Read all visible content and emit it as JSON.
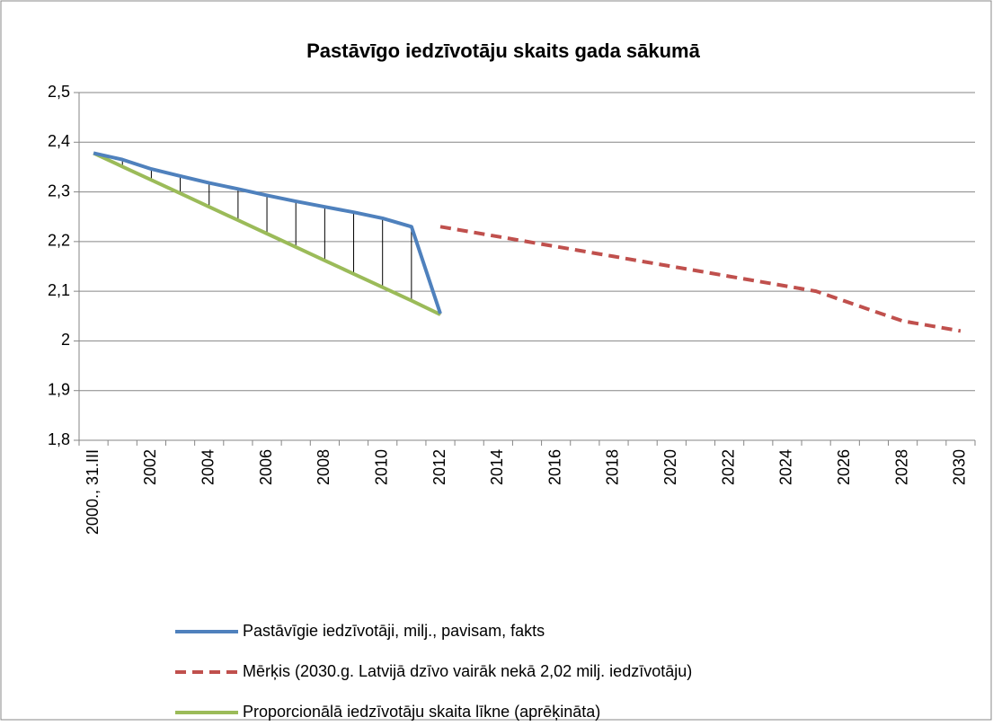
{
  "chart_data": {
    "type": "line",
    "title": "Pastāvīgo iedzīvotāju skaits gada sākumā",
    "categories": [
      "2000., 31.III",
      null,
      "2002",
      null,
      "2004",
      null,
      "2006",
      null,
      "2008",
      null,
      "2010",
      null,
      "2012",
      null,
      "2014",
      null,
      "2016",
      null,
      "2018",
      null,
      "2020",
      null,
      "2022",
      null,
      "2024",
      null,
      "2026",
      null,
      "2028",
      null,
      "2030"
    ],
    "series": [
      {
        "name": "Pastāvīgie iedzīvotāji, milj., pavisam, fakts",
        "color": "#4f81bd",
        "style": "solid",
        "values": [
          2.378,
          2.365,
          2.346,
          2.332,
          2.318,
          2.306,
          2.293,
          2.281,
          2.27,
          2.259,
          2.247,
          2.23,
          2.055,
          null,
          null,
          null,
          null,
          null,
          null,
          null,
          null,
          null,
          null,
          null,
          null,
          null,
          null,
          null,
          null,
          null,
          null
        ]
      },
      {
        "name": "Mērķis (2030.g. Latvijā dzīvo vairāk nekā 2,02 milj. iedzīvotāju)",
        "color": "#c0504d",
        "style": "dashed",
        "values": [
          null,
          null,
          null,
          null,
          null,
          null,
          null,
          null,
          null,
          null,
          null,
          null,
          2.23,
          2.22,
          2.21,
          2.2,
          2.19,
          2.18,
          2.17,
          2.16,
          2.15,
          2.14,
          2.13,
          2.12,
          2.11,
          2.1,
          2.08,
          2.06,
          2.04,
          2.03,
          2.02
        ]
      },
      {
        "name": "Proporcionālā iedzīvotāju skaita līkne (aprēķināta)",
        "color": "#9bbb59",
        "style": "solid",
        "values": [
          2.378,
          2.351,
          2.324,
          2.297,
          2.27,
          2.243,
          2.216,
          2.189,
          2.162,
          2.135,
          2.108,
          2.081,
          2.053,
          null,
          null,
          null,
          null,
          null,
          null,
          null,
          null,
          null,
          null,
          null,
          null,
          null,
          null,
          null,
          null,
          null,
          null
        ]
      }
    ],
    "ylim": [
      1.8,
      2.5
    ],
    "yticks": [
      {
        "value": 1.8,
        "label": "1,8"
      },
      {
        "value": 1.9,
        "label": "1,9"
      },
      2,
      {
        "value": 2.1,
        "label": "2,1"
      },
      {
        "value": 2.2,
        "label": "2,2"
      },
      {
        "value": 2.3,
        "label": "2,3"
      },
      {
        "value": 2.4,
        "label": "2,4"
      },
      {
        "value": 2.5,
        "label": "2,5"
      }
    ],
    "grid": true,
    "drop_lines": true,
    "legend": "bottom"
  }
}
